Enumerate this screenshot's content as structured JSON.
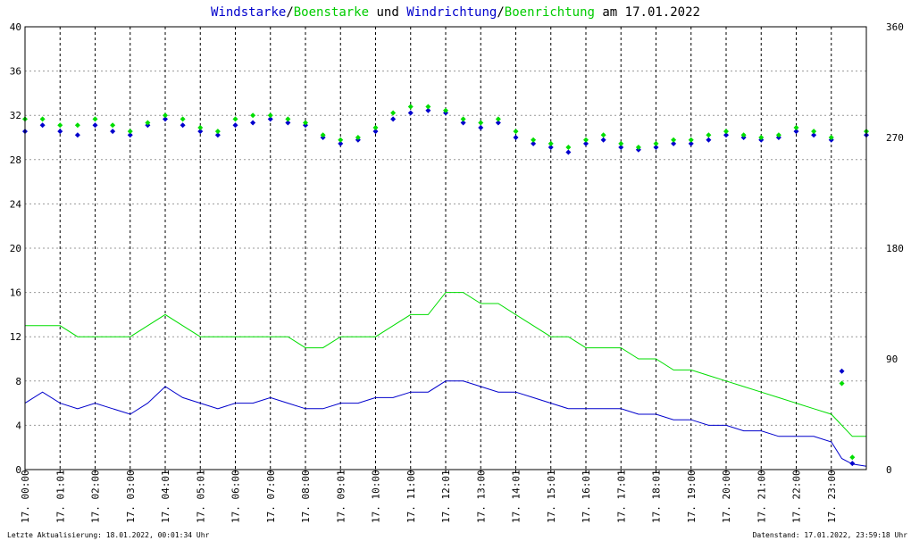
{
  "title": {
    "part1": "Windstarke",
    "sep1": "/",
    "part2": "Boenstarke",
    "part3": " und ",
    "part4": "Windrichtung",
    "sep2": "/",
    "part5": "Boenrichtung",
    "part6": " am 17.01.2022"
  },
  "colors": {
    "wind": "#0000cc",
    "gust": "#00dd00",
    "grid": "#999999",
    "axis": "#000000"
  },
  "footer": {
    "left": "Letzte Aktualisierung: 18.01.2022, 00:01:34 Uhr",
    "right": "Datenstand: 17.01.2022, 23:59:18 Uhr"
  },
  "chart_data": {
    "type": "line",
    "x_tick_labels": [
      "17. 00:00",
      "17. 01:01",
      "17. 02:00",
      "17. 03:00",
      "17. 04:01",
      "17. 05:01",
      "17. 06:00",
      "17. 07:00",
      "17. 08:00",
      "17. 09:01",
      "17. 10:00",
      "17. 11:00",
      "17. 12:01",
      "17. 13:00",
      "17. 14:01",
      "17. 15:01",
      "17. 16:01",
      "17. 17:01",
      "17. 18:01",
      "17. 19:00",
      "17. 20:00",
      "17. 21:00",
      "17. 22:00",
      "17. 23:00"
    ],
    "y_left": {
      "ylim": [
        0,
        40
      ],
      "ticks": [
        "0",
        "4",
        "8",
        "12",
        "16",
        "20",
        "24",
        "28",
        "32",
        "36",
        "40"
      ]
    },
    "y_right": {
      "ylim": [
        0,
        360
      ],
      "ticks": [
        "0",
        "90",
        "180",
        "270",
        "360"
      ]
    },
    "grid": true,
    "x_range_hours": [
      0,
      24
    ],
    "series": [
      {
        "name": "Windstarke",
        "axis": "left",
        "style": "line",
        "hours": [
          0,
          0.5,
          1,
          1.5,
          2,
          2.5,
          3,
          3.5,
          4,
          4.5,
          5,
          5.5,
          6,
          6.5,
          7,
          7.5,
          8,
          8.5,
          9,
          9.5,
          10,
          10.5,
          11,
          11.5,
          12,
          12.5,
          13,
          13.5,
          14,
          14.5,
          15,
          15.5,
          16,
          16.5,
          17,
          17.5,
          18,
          18.5,
          19,
          19.5,
          20,
          20.5,
          21,
          21.5,
          22,
          22.5,
          23,
          23.3,
          23.6,
          24
        ],
        "values": [
          6,
          7,
          6,
          5.5,
          6,
          5.5,
          5,
          6,
          7.5,
          6.5,
          6,
          5.5,
          6,
          6,
          6.5,
          6,
          5.5,
          5.5,
          6,
          6,
          6.5,
          6.5,
          7,
          7,
          8,
          8,
          7.5,
          7,
          7,
          6.5,
          6,
          5.5,
          5.5,
          5.5,
          5.5,
          5,
          5,
          4.5,
          4.5,
          4,
          4,
          3.5,
          3.5,
          3,
          3,
          3,
          2.5,
          1,
          0.5,
          0.3
        ]
      },
      {
        "name": "Boenstarke",
        "axis": "left",
        "style": "line",
        "hours": [
          0,
          0.5,
          1,
          1.5,
          2,
          2.5,
          3,
          3.5,
          4,
          4.5,
          5,
          5.5,
          6,
          6.5,
          7,
          7.5,
          8,
          8.5,
          9,
          9.5,
          10,
          10.5,
          11,
          11.5,
          12,
          12.5,
          13,
          13.5,
          14,
          14.5,
          15,
          15.5,
          16,
          16.5,
          17,
          17.5,
          18,
          18.5,
          19,
          19.5,
          20,
          20.5,
          21,
          21.5,
          22,
          22.5,
          23,
          23.3,
          23.6,
          24
        ],
        "values": [
          13,
          13,
          13,
          12,
          12,
          12,
          12,
          13,
          14,
          13,
          12,
          12,
          12,
          12,
          12,
          12,
          11,
          11,
          12,
          12,
          12,
          13,
          14,
          14,
          16,
          16,
          15,
          15,
          14,
          13,
          12,
          12,
          11,
          11,
          11,
          10,
          10,
          9,
          9,
          8.5,
          8,
          7.5,
          7,
          6.5,
          6,
          5.5,
          5,
          4,
          3,
          3
        ]
      },
      {
        "name": "Windrichtung",
        "axis": "right",
        "style": "markers",
        "hours": [
          0,
          0.5,
          1,
          1.5,
          2,
          2.5,
          3,
          3.5,
          4,
          4.5,
          5,
          5.5,
          6,
          6.5,
          7,
          7.5,
          8,
          8.5,
          9,
          9.5,
          10,
          10.5,
          11,
          11.5,
          12,
          12.5,
          13,
          13.5,
          14,
          14.5,
          15,
          15.5,
          16,
          16.5,
          17,
          17.5,
          18,
          18.5,
          19,
          19.5,
          20,
          20.5,
          21,
          21.5,
          22,
          22.5,
          23,
          23.3,
          23.6,
          24
        ],
        "values": [
          275,
          280,
          275,
          272,
          280,
          275,
          272,
          280,
          285,
          280,
          275,
          272,
          280,
          282,
          285,
          282,
          280,
          270,
          265,
          268,
          275,
          285,
          290,
          292,
          290,
          282,
          278,
          282,
          270,
          265,
          262,
          258,
          265,
          268,
          262,
          260,
          262,
          265,
          265,
          268,
          272,
          270,
          268,
          270,
          275,
          272,
          268,
          80,
          5,
          272
        ]
      },
      {
        "name": "Boenrichtung",
        "axis": "right",
        "style": "markers",
        "hours": [
          0,
          0.5,
          1,
          1.5,
          2,
          2.5,
          3,
          3.5,
          4,
          4.5,
          5,
          5.5,
          6,
          6.5,
          7,
          7.5,
          8,
          8.5,
          9,
          9.5,
          10,
          10.5,
          11,
          11.5,
          12,
          12.5,
          13,
          13.5,
          14,
          14.5,
          15,
          15.5,
          16,
          16.5,
          17,
          17.5,
          18,
          18.5,
          19,
          19.5,
          20,
          20.5,
          21,
          21.5,
          22,
          22.5,
          23,
          23.3,
          23.6,
          24
        ],
        "values": [
          285,
          285,
          280,
          280,
          285,
          280,
          275,
          282,
          288,
          285,
          278,
          275,
          285,
          288,
          288,
          285,
          282,
          272,
          268,
          270,
          278,
          290,
          295,
          295,
          292,
          285,
          282,
          285,
          275,
          268,
          265,
          262,
          268,
          272,
          265,
          262,
          265,
          268,
          268,
          272,
          275,
          272,
          270,
          272,
          278,
          275,
          270,
          70,
          10,
          275
        ]
      }
    ]
  }
}
